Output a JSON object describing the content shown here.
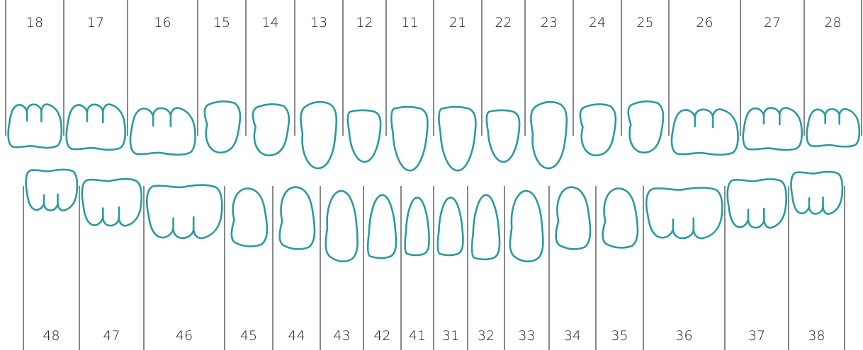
{
  "colors": {
    "tooth_outline": "#2a9a9e",
    "divider": "#111111",
    "text": "#1a1a1a",
    "background": "#ffffff"
  },
  "upper": [
    {
      "number": "18",
      "icon": "molar-icon"
    },
    {
      "number": "17",
      "icon": "molar-icon"
    },
    {
      "number": "16",
      "icon": "molar-icon"
    },
    {
      "number": "15",
      "icon": "premolar-icon"
    },
    {
      "number": "14",
      "icon": "premolar-icon"
    },
    {
      "number": "13",
      "icon": "canine-icon"
    },
    {
      "number": "12",
      "icon": "incisor-icon"
    },
    {
      "number": "11",
      "icon": "incisor-icon"
    },
    {
      "number": "21",
      "icon": "incisor-icon"
    },
    {
      "number": "22",
      "icon": "incisor-icon"
    },
    {
      "number": "23",
      "icon": "canine-icon"
    },
    {
      "number": "24",
      "icon": "premolar-icon"
    },
    {
      "number": "25",
      "icon": "premolar-icon"
    },
    {
      "number": "26",
      "icon": "molar-icon"
    },
    {
      "number": "27",
      "icon": "molar-icon"
    },
    {
      "number": "28",
      "icon": "molar-icon"
    }
  ],
  "lower": [
    {
      "number": "48",
      "icon": "molar-icon"
    },
    {
      "number": "47",
      "icon": "molar-icon"
    },
    {
      "number": "46",
      "icon": "molar-icon"
    },
    {
      "number": "45",
      "icon": "premolar-icon"
    },
    {
      "number": "44",
      "icon": "premolar-icon"
    },
    {
      "number": "43",
      "icon": "canine-icon"
    },
    {
      "number": "42",
      "icon": "incisor-icon"
    },
    {
      "number": "41",
      "icon": "incisor-icon"
    },
    {
      "number": "31",
      "icon": "incisor-icon"
    },
    {
      "number": "32",
      "icon": "incisor-icon"
    },
    {
      "number": "33",
      "icon": "canine-icon"
    },
    {
      "number": "34",
      "icon": "premolar-icon"
    },
    {
      "number": "35",
      "icon": "premolar-icon"
    },
    {
      "number": "36",
      "icon": "molar-icon"
    },
    {
      "number": "37",
      "icon": "molar-icon"
    },
    {
      "number": "38",
      "icon": "molar-icon"
    }
  ]
}
